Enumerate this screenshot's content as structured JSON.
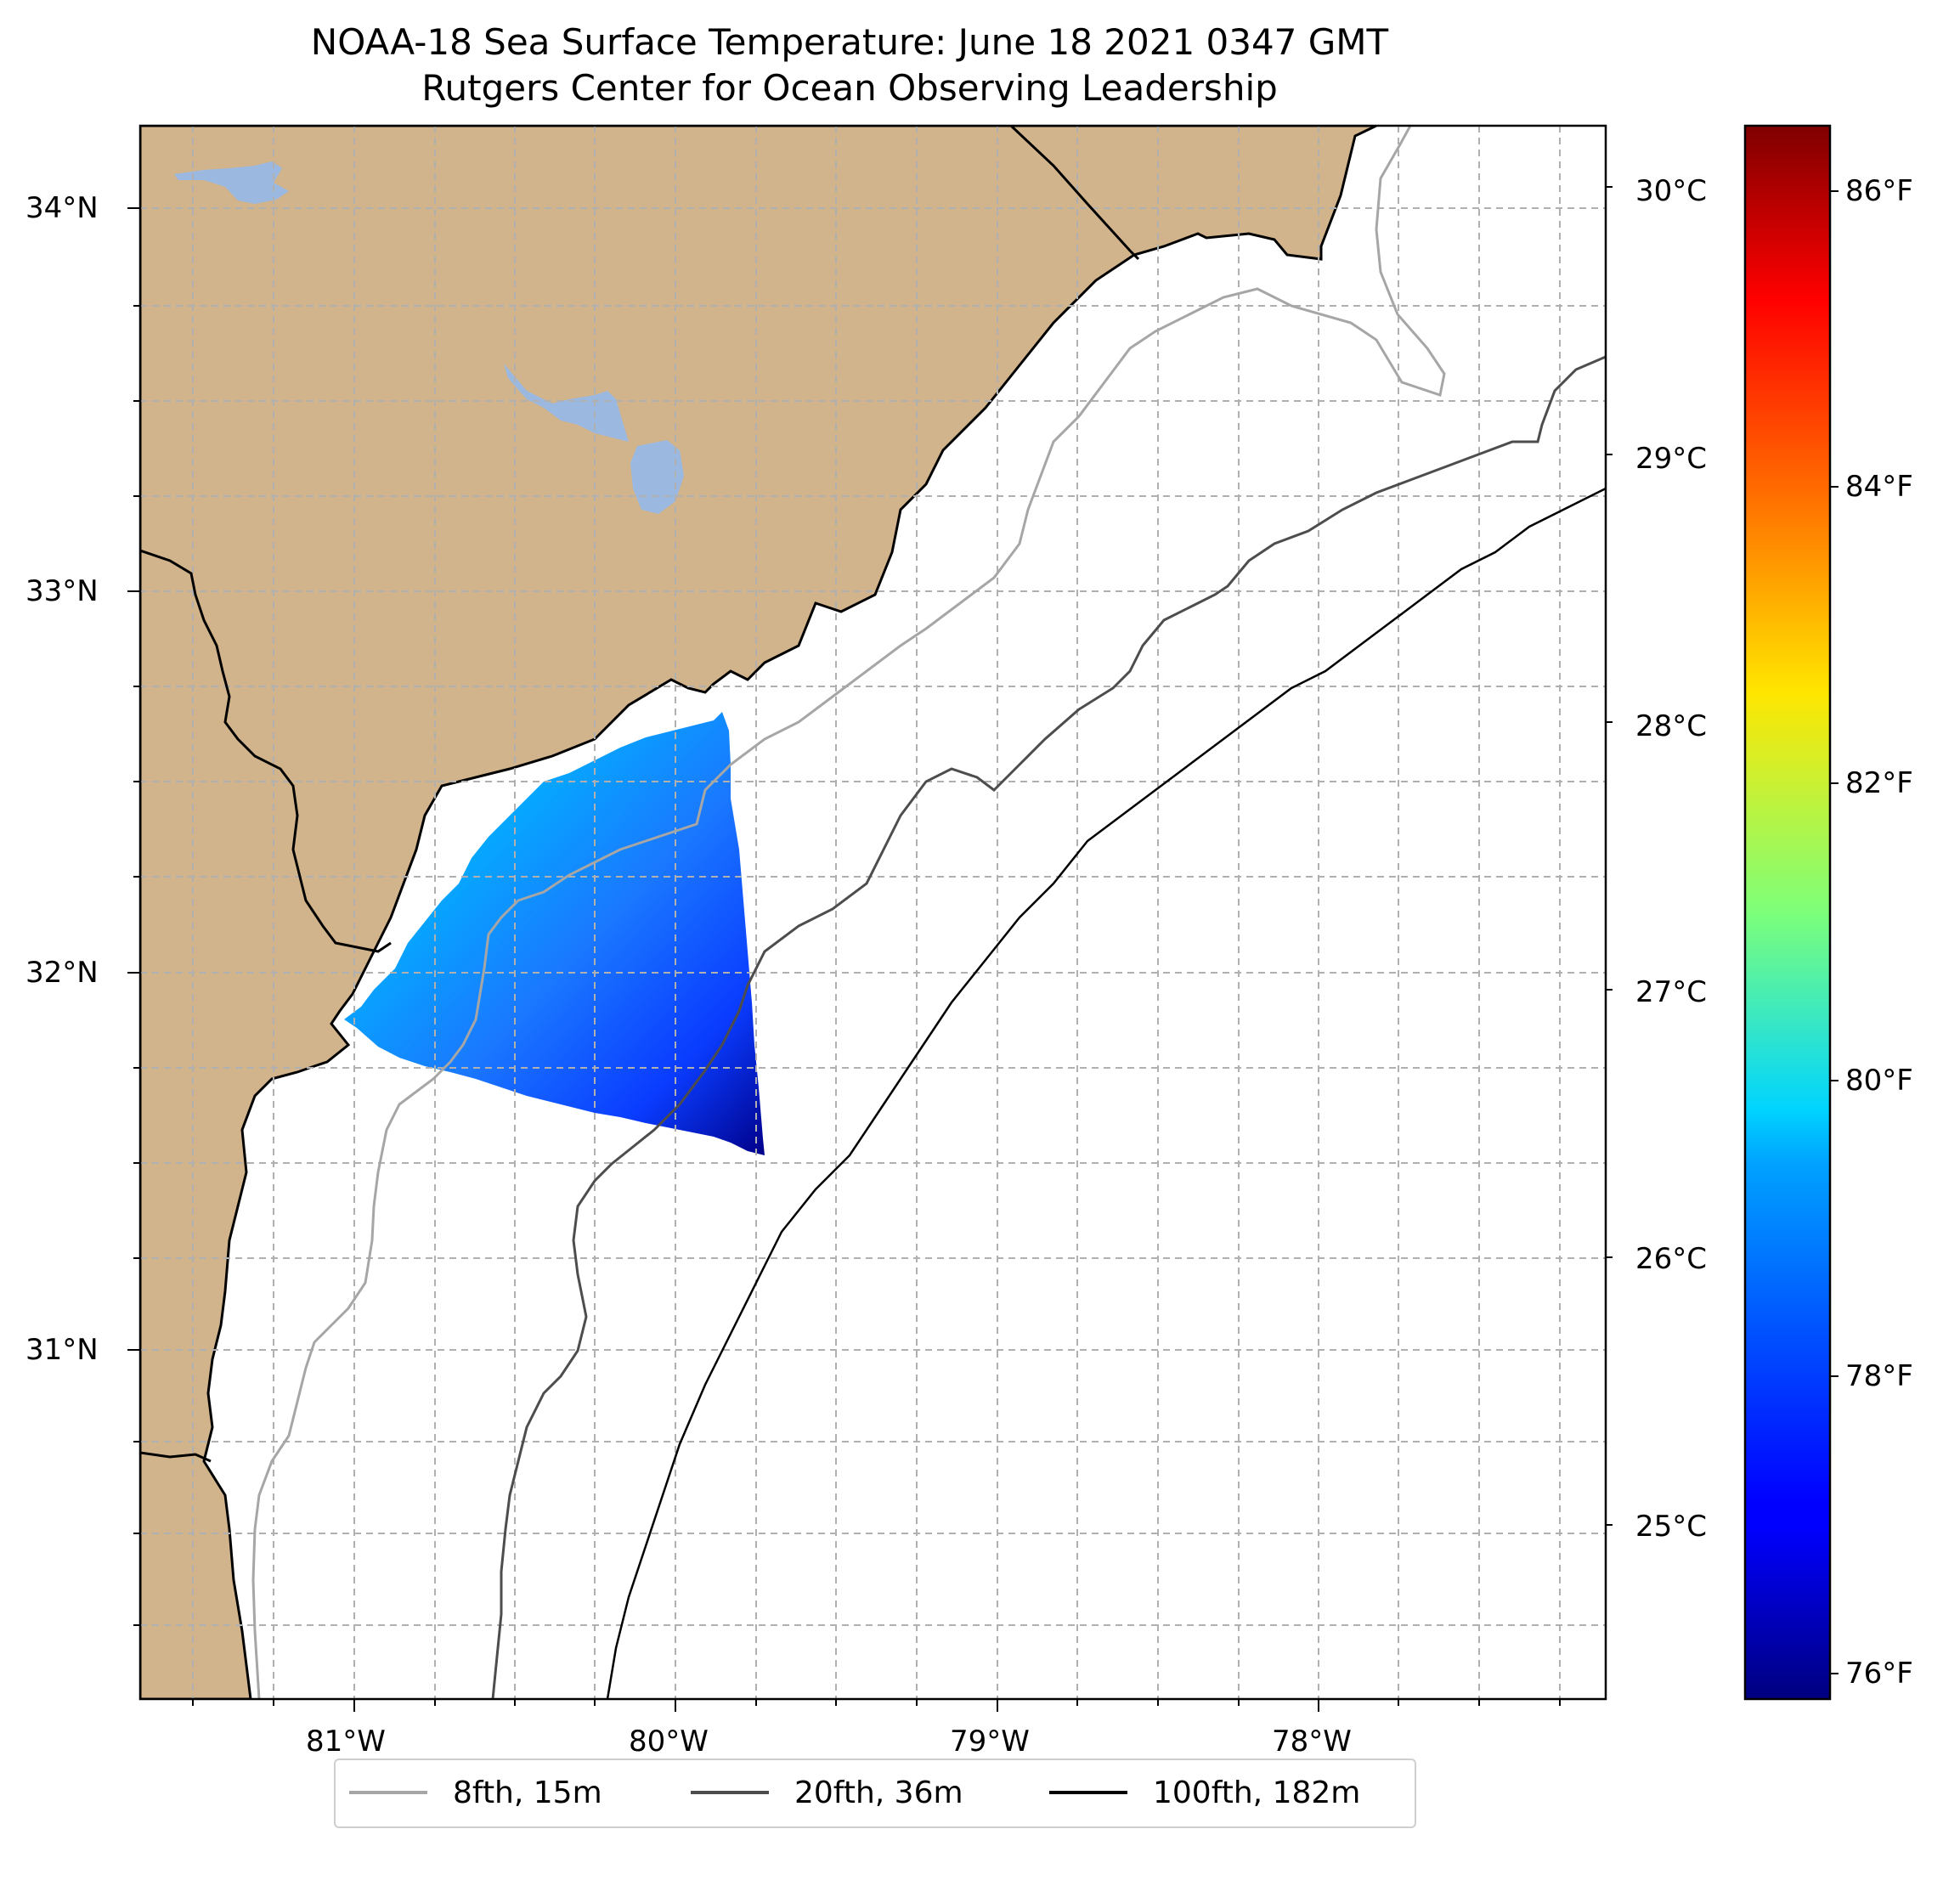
{
  "title": {
    "line1": "NOAA-18 Sea Surface Temperature: June 18 2021 0347 GMT",
    "line2": "Rutgers Center for Ocean Observing Leadership"
  },
  "map": {
    "lon_ticks": [
      "81°W",
      "80°W",
      "79°W",
      "78°W"
    ],
    "lat_ticks": [
      "34°N",
      "33°N",
      "32°N",
      "31°N"
    ],
    "colors": {
      "land": "#d2b48c",
      "water": "#9ab8e0",
      "ocean": "#ffffff",
      "coast": "#000000",
      "grid": "#b0b0b0"
    }
  },
  "colorbar": {
    "celsius_ticks": [
      "30°C",
      "29°C",
      "28°C",
      "27°C",
      "26°C",
      "25°C"
    ],
    "fahrenheit_ticks": [
      "86°F",
      "84°F",
      "82°F",
      "80°F",
      "78°F",
      "76°F"
    ],
    "colormap": "jet",
    "range_c": [
      24.4,
      30.3
    ]
  },
  "legend": {
    "items": [
      {
        "label": "8fth, 15m",
        "color": "#a6a6a6"
      },
      {
        "label": "20fth, 36m",
        "color": "#4d4d4d"
      },
      {
        "label": "100fth, 182m",
        "color": "#000000"
      }
    ]
  }
}
